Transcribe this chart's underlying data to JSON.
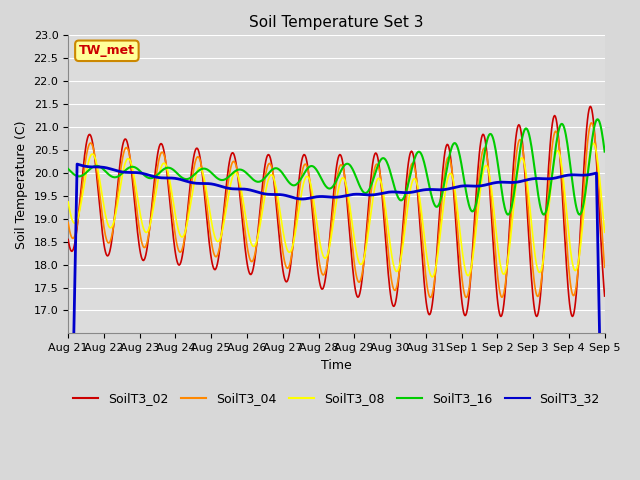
{
  "title": "Soil Temperature Set 3",
  "xlabel": "Time",
  "ylabel": "Soil Temperature (C)",
  "ylim": [
    16.5,
    23.0
  ],
  "yticks": [
    17.0,
    17.5,
    18.0,
    18.5,
    19.0,
    19.5,
    20.0,
    20.5,
    21.0,
    21.5,
    22.0,
    22.5,
    23.0
  ],
  "bg_color": "#d8d8d8",
  "plot_bg_color": "#dcdcdc",
  "grid_color": "#ffffff",
  "series_colors": {
    "SoilT3_02": "#cc0000",
    "SoilT3_04": "#ff8800",
    "SoilT3_08": "#ffff00",
    "SoilT3_16": "#00cc00",
    "SoilT3_32": "#0000cc"
  },
  "annotation_text": "TW_met",
  "annotation_color": "#cc0000",
  "annotation_bg": "#ffff99",
  "annotation_border": "#cc8800",
  "title_fontsize": 11,
  "axis_label_fontsize": 9,
  "tick_fontsize": 8,
  "legend_fontsize": 9,
  "linewidth_thin": 1.2,
  "linewidth_medium": 1.5,
  "linewidth_thick": 2.0
}
